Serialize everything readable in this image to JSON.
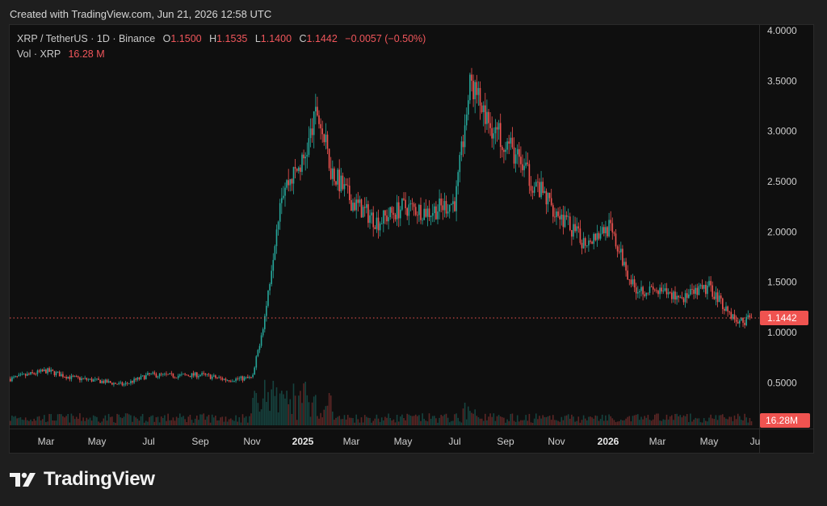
{
  "header": {
    "caption": "Created with TradingView.com, Jun 21, 2026 12:58 UTC"
  },
  "legend": {
    "symbol": "XRP / TetherUS · 1D · Binance",
    "open_label": "O",
    "open": "1.1500",
    "high_label": "H",
    "high": "1.1535",
    "low_label": "L",
    "low": "1.1400",
    "close_label": "C",
    "close": "1.1442",
    "change": "−0.0057 (−0.50%)",
    "vol_label": "Vol · XRP",
    "vol_value": "16.28 M"
  },
  "brand": {
    "name": "TradingView"
  },
  "colors": {
    "up": "#26a69a",
    "down": "#ef5350",
    "price_line": "#ef5350",
    "background": "#0f0f0f"
  },
  "chart_data": {
    "type": "candlestick",
    "title": "XRP / TetherUS · 1D · Binance",
    "y_axis_ticks": [
      "4.0000",
      "3.5000",
      "3.0000",
      "2.5000",
      "2.0000",
      "1.5000",
      "1.0000",
      "0.5000"
    ],
    "ylim": [
      0.0,
      4.0
    ],
    "x_axis_ticks": [
      "Mar",
      "May",
      "Jul",
      "Sep",
      "Nov",
      "2025",
      "Mar",
      "May",
      "Jul",
      "Sep",
      "Nov",
      "2026",
      "Mar",
      "May",
      "Ju"
    ],
    "bold_ticks": [
      "2025",
      "2026"
    ],
    "last_price_label": "1.1442",
    "volume_label": "16.28M",
    "approx_series": {
      "dates": [
        "2024-02",
        "2024-03",
        "2024-04",
        "2024-05",
        "2024-06",
        "2024-07",
        "2024-08",
        "2024-09",
        "2024-10",
        "2024-11-01",
        "2024-11-15",
        "2024-12",
        "2025-01",
        "2025-01-15",
        "2025-02",
        "2025-03",
        "2025-04",
        "2025-05",
        "2025-06",
        "2025-07",
        "2025-07-20",
        "2025-08",
        "2025-09",
        "2025-10",
        "2025-11",
        "2025-12",
        "2026-01",
        "2026-02",
        "2026-03",
        "2026-04",
        "2026-05",
        "2026-06-10",
        "2026-06-21"
      ],
      "close": [
        0.54,
        0.62,
        0.55,
        0.52,
        0.48,
        0.58,
        0.57,
        0.58,
        0.53,
        0.55,
        1.2,
        2.4,
        2.7,
        3.2,
        2.6,
        2.3,
        2.1,
        2.25,
        2.2,
        2.3,
        3.5,
        3.1,
        2.9,
        2.5,
        2.2,
        1.9,
        2.05,
        1.45,
        1.4,
        1.35,
        1.45,
        1.1,
        1.1442
      ]
    }
  }
}
